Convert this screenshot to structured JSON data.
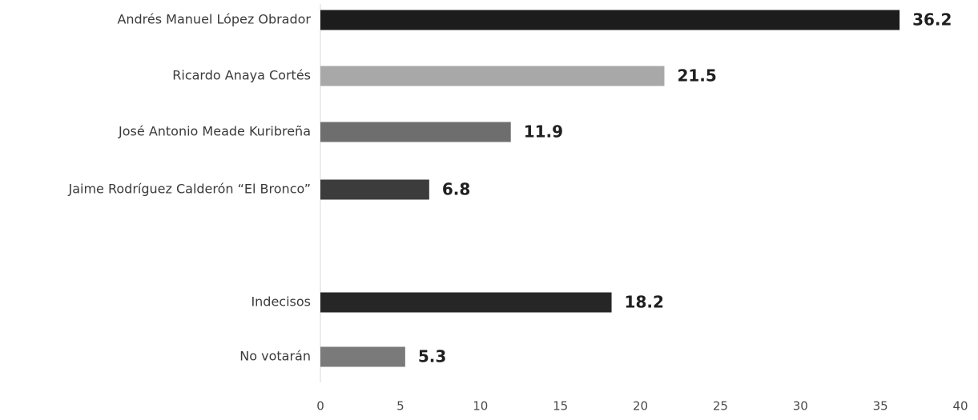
{
  "chart_data": {
    "type": "bar",
    "orientation": "horizontal",
    "categories": [
      "Andrés Manuel López Obrador",
      "Ricardo Anaya Cortés",
      "José Antonio Meade Kuribreña",
      "Jaime Rodríguez Calderón “El Bronco”",
      "Indecisos",
      "No votarán"
    ],
    "values": [
      36.2,
      21.5,
      11.9,
      6.8,
      18.2,
      5.3
    ],
    "value_labels": [
      "36.2",
      "21.5",
      "11.9",
      "6.8",
      "18.2",
      "5.3"
    ],
    "bar_colors": [
      "#1c1c1c",
      "#a8a8a8",
      "#6e6e6e",
      "#3c3c3c",
      "#262626",
      "#7a7a7a"
    ],
    "xlim": [
      0,
      40
    ],
    "x_ticks": [
      0,
      5,
      10,
      15,
      20,
      25,
      30,
      35,
      40
    ],
    "grid": false,
    "legend": "none"
  }
}
